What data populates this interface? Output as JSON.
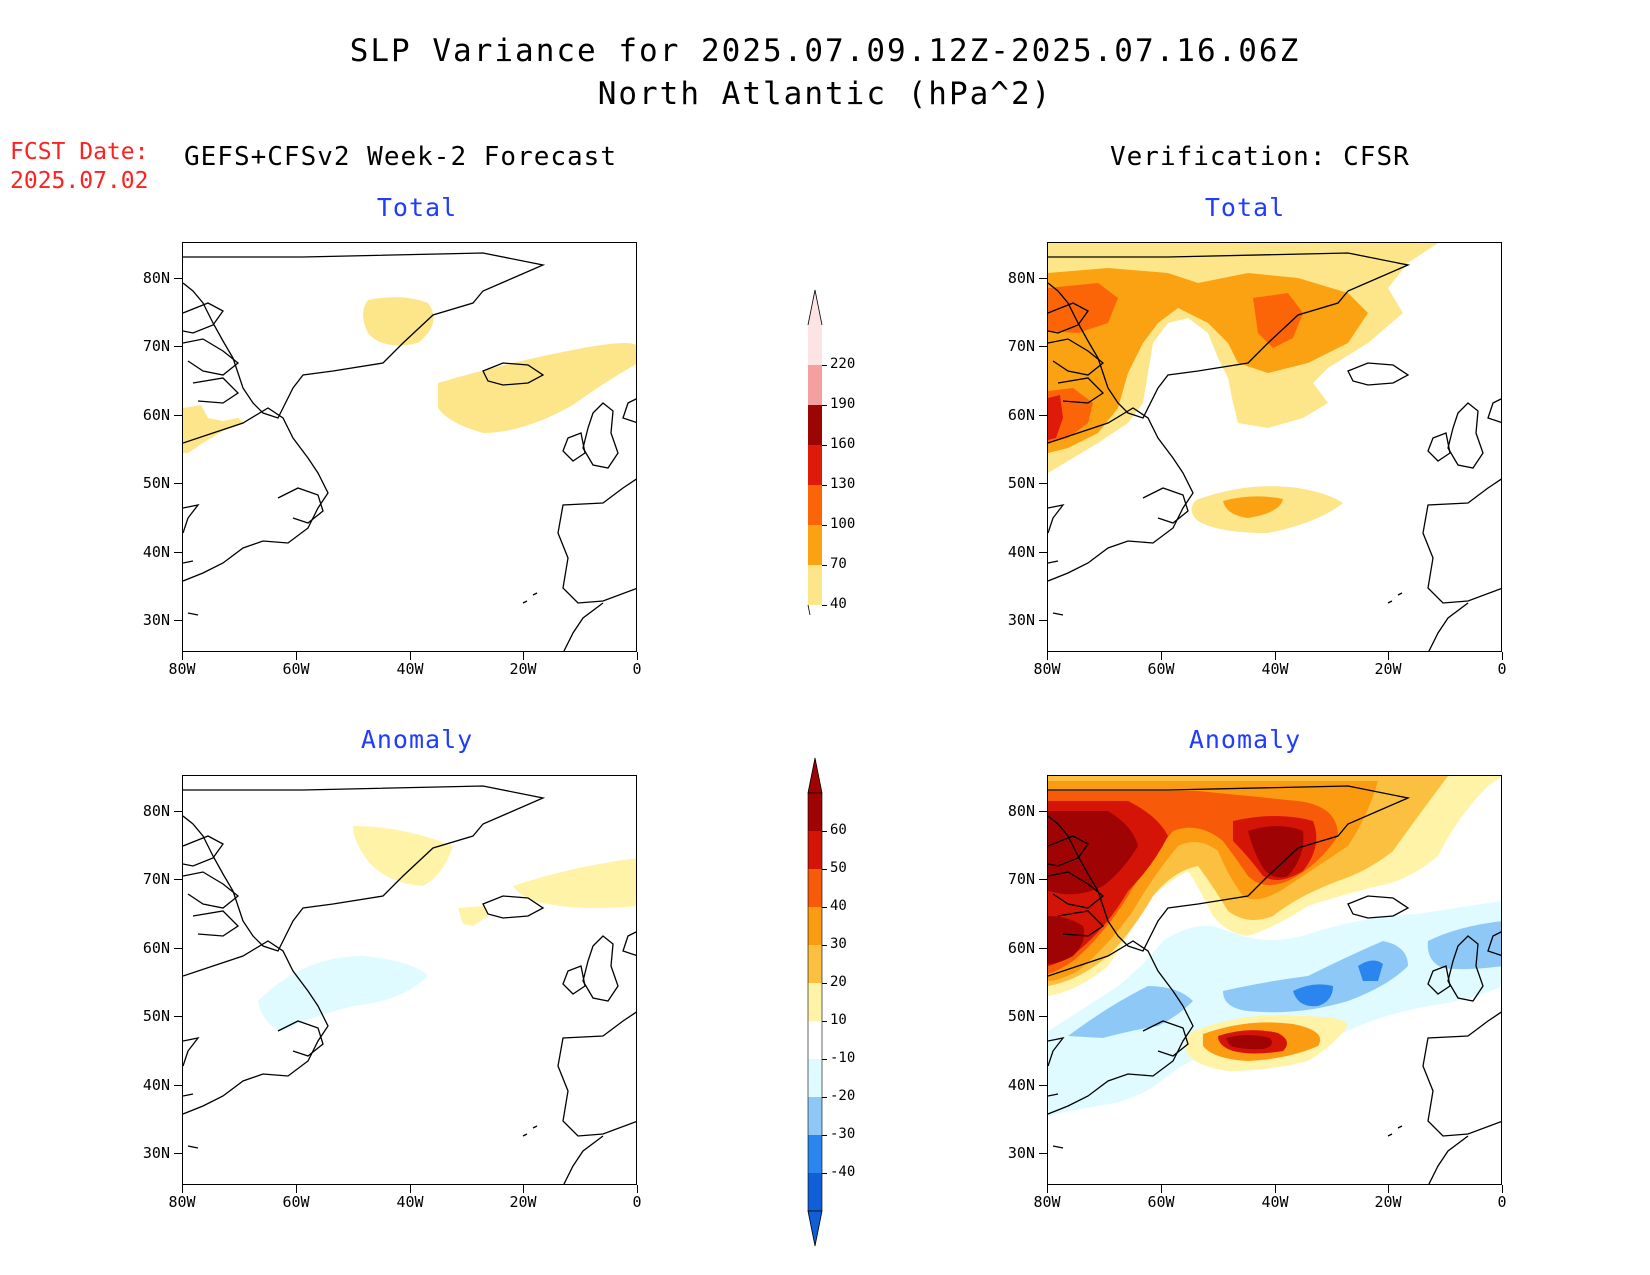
{
  "header": {
    "title_line1": "SLP Variance for 2025.07.09.12Z-2025.07.16.06Z",
    "title_line2": "North Atlantic (hPa^2)"
  },
  "fcst": {
    "label": "FCST Date:",
    "date": "2025.07.02"
  },
  "columns": {
    "left": "GEFS+CFSv2 Week-2 Forecast",
    "right": "Verification: CFSR"
  },
  "panels": {
    "forecast_total": {
      "title": "Total"
    },
    "forecast_anomaly": {
      "title": "Anomaly"
    },
    "verification_total": {
      "title": "Total"
    },
    "verification_anomaly": {
      "title": "Anomaly"
    }
  },
  "axes": {
    "lat_labels": [
      "80N",
      "70N",
      "60N",
      "50N",
      "40N",
      "30N"
    ],
    "lon_labels": [
      "80W",
      "60W",
      "40W",
      "20W",
      "0"
    ],
    "lon_range": [
      -80,
      0
    ],
    "lat_range": [
      25,
      85
    ]
  },
  "legend_total": {
    "levels": [
      "40",
      "70",
      "100",
      "130",
      "160",
      "190",
      "220"
    ],
    "colors": [
      "#fde68a",
      "#fba213",
      "#fb6508",
      "#de1b0b",
      "#9b0603",
      "#f4a0a0",
      "#fde4e4"
    ]
  },
  "legend_anomaly": {
    "levels": [
      "-40",
      "-30",
      "-20",
      "-10",
      "10",
      "20",
      "30",
      "40",
      "50",
      "60"
    ],
    "colors": [
      "#0f5fd8",
      "#2a85ee",
      "#8ec8f7",
      "#dffbff",
      "#ffffff",
      "#fff3a8",
      "#fcc040",
      "#fb9b12",
      "#f75a08",
      "#d51408",
      "#a00303"
    ]
  },
  "colors": {
    "land_outline": "#000000",
    "panel_title": "#1f3cff",
    "fcst_text": "#ff2020"
  }
}
